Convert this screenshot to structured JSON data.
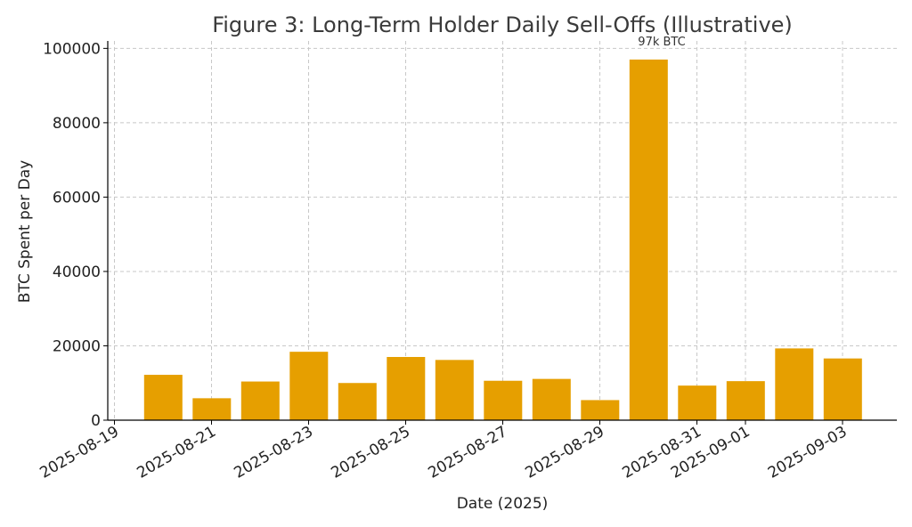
{
  "chart_data": {
    "type": "bar",
    "title": "Figure 3: Long-Term Holder Daily Sell-Offs (Illustrative)",
    "xlabel": "Date (2025)",
    "ylabel": "BTC Spent per Day",
    "x": [
      "2025-08-20",
      "2025-08-21",
      "2025-08-22",
      "2025-08-23",
      "2025-08-24",
      "2025-08-25",
      "2025-08-26",
      "2025-08-27",
      "2025-08-28",
      "2025-08-29",
      "2025-08-30",
      "2025-08-31",
      "2025-09-01",
      "2025-09-02",
      "2025-09-03"
    ],
    "values": [
      12200,
      5900,
      10400,
      18400,
      10000,
      17000,
      16200,
      10600,
      11100,
      5400,
      97000,
      9300,
      10500,
      19300,
      16600
    ],
    "ylim": [
      0,
      102000
    ],
    "yticks": [
      0,
      20000,
      40000,
      60000,
      80000,
      100000
    ],
    "xticks": [
      "2025-08-19",
      "2025-08-21",
      "2025-08-23",
      "2025-08-25",
      "2025-08-27",
      "2025-08-29",
      "2025-08-31",
      "2025-09-01",
      "2025-09-03"
    ],
    "grid": true,
    "bar_color": "#E69F00",
    "annotations": [
      {
        "x": "2025-08-30",
        "text": "97k BTC"
      }
    ]
  }
}
